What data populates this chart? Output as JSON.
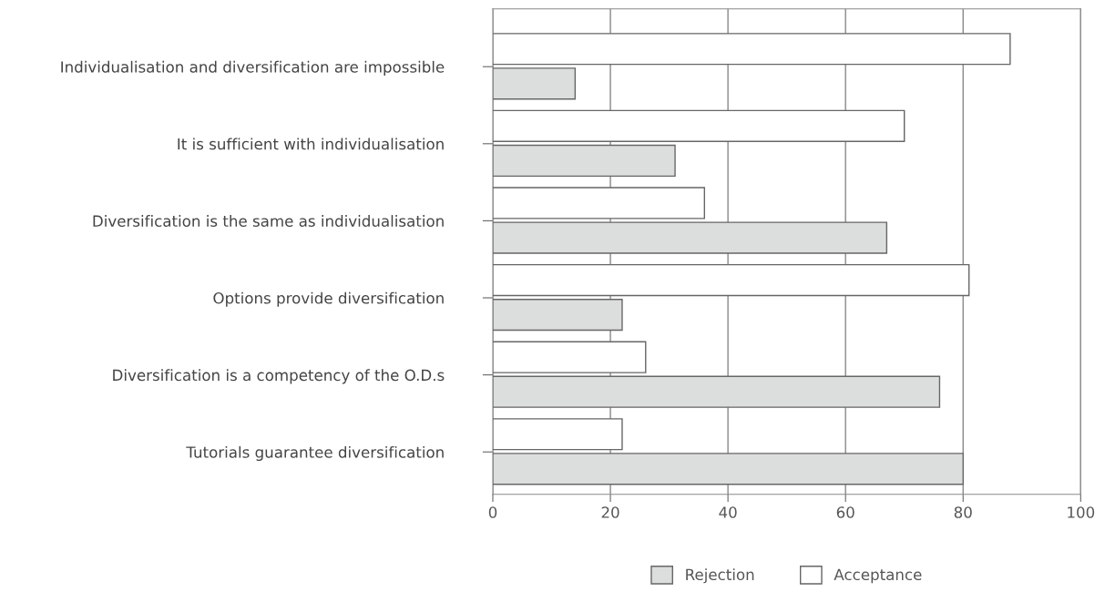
{
  "chart_data": {
    "type": "bar",
    "orientation": "horizontal",
    "categories": [
      "Individualisation and diversification are impossible",
      "It is sufficient with individualisation",
      "Diversification is the same as individualisation",
      "Options provide diversification",
      "Diversification is a competency of the O.D.s",
      "Tutorials guarantee diversification"
    ],
    "series": [
      {
        "name": "Rejection",
        "color": "#dcdedd",
        "values": [
          14,
          31,
          67,
          22,
          76,
          80
        ]
      },
      {
        "name": "Acceptance",
        "color": "#ffffff",
        "values": [
          88,
          70,
          36,
          81,
          26,
          22
        ]
      }
    ],
    "xlim": [
      0,
      100
    ],
    "xticks": [
      0,
      20,
      40,
      60,
      80,
      100
    ],
    "grid": "x",
    "legend": "bottom"
  }
}
